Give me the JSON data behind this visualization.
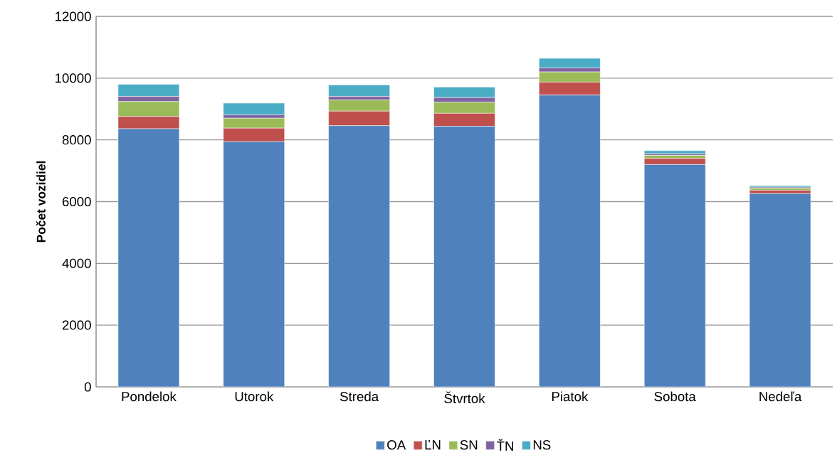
{
  "chart_data": {
    "type": "bar",
    "stacked": true,
    "ylabel": "Počet vozidiel",
    "categories": [
      "Pondelok",
      "Utorok",
      "Streda",
      "Štvrtok",
      "Piatok",
      "Sobota",
      "Nedeľa"
    ],
    "series": [
      {
        "name": "OA",
        "color": "#4f81bd",
        "values": [
          8360,
          7940,
          8460,
          8440,
          9450,
          7200,
          6260
        ]
      },
      {
        "name": "ĽN",
        "color": "#c0504d",
        "values": [
          400,
          440,
          470,
          420,
          420,
          200,
          110
        ]
      },
      {
        "name": "SN",
        "color": "#9bbb59",
        "values": [
          480,
          320,
          360,
          360,
          330,
          100,
          70
        ]
      },
      {
        "name": "ŤN",
        "color": "#8064a2",
        "values": [
          170,
          110,
          120,
          150,
          130,
          50,
          30
        ]
      },
      {
        "name": "NS",
        "color": "#4bacc6",
        "values": [
          390,
          380,
          370,
          340,
          310,
          100,
          50
        ]
      }
    ],
    "ylim": [
      0,
      12000
    ],
    "yticks": [
      0,
      2000,
      4000,
      6000,
      8000,
      10000,
      12000
    ],
    "grid": "y",
    "legend": "bottom"
  }
}
